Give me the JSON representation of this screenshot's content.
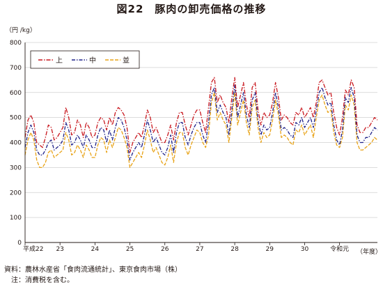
{
  "figure_title": "図22　豚肉の卸売価格の推移",
  "unit_label": "（円 /kg）",
  "source_note": "資料：農林水産省「食肉流通統計」、東京食肉市場（株）",
  "note": "　注：消費税を含む。",
  "chart_data": {
    "type": "line",
    "title": "",
    "ylabel": "（円 /kg）",
    "xlabel": "（年度）",
    "ylim": [
      0,
      800
    ],
    "yticks": [
      0,
      100,
      200,
      300,
      400,
      500,
      600,
      700,
      800
    ],
    "grid": true,
    "legend_position": "top-left",
    "x_tick_labels": [
      "平成22",
      "23",
      "24",
      "25",
      "26",
      "27",
      "28",
      "29",
      "30",
      "令和元"
    ],
    "months_per_year": 12,
    "colors": {
      "上": "#c8161d",
      "中": "#1d2088",
      "並": "#e8a317"
    },
    "series": [
      {
        "name": "上",
        "values": [
          420,
          490,
          510,
          480,
          400,
          390,
          380,
          420,
          470,
          460,
          410,
          420,
          440,
          460,
          540,
          500,
          430,
          440,
          490,
          470,
          420,
          480,
          460,
          420,
          430,
          480,
          500,
          490,
          450,
          500,
          470,
          520,
          540,
          530,
          510,
          460,
          360,
          400,
          420,
          440,
          420,
          470,
          530,
          500,
          440,
          460,
          430,
          400,
          400,
          430,
          470,
          410,
          480,
          520,
          520,
          470,
          430,
          470,
          510,
          530,
          530,
          480,
          440,
          540,
          640,
          660,
          560,
          590,
          560,
          540,
          480,
          580,
          660,
          540,
          590,
          640,
          550,
          500,
          620,
          640,
          530,
          470,
          520,
          500,
          510,
          560,
          640,
          580,
          490,
          510,
          500,
          480,
          470,
          520,
          510,
          540,
          500,
          520,
          540,
          500,
          560,
          640,
          650,
          620,
          590,
          600,
          520,
          460,
          430,
          500,
          610,
          590,
          650,
          620,
          470,
          440,
          440,
          460,
          460,
          480,
          500,
          490
        ]
      },
      {
        "name": "中",
        "values": [
          380,
          440,
          470,
          440,
          370,
          350,
          350,
          370,
          400,
          410,
          370,
          380,
          390,
          410,
          480,
          450,
          390,
          400,
          430,
          410,
          380,
          430,
          410,
          380,
          380,
          430,
          460,
          450,
          400,
          450,
          410,
          460,
          500,
          490,
          460,
          410,
          330,
          360,
          380,
          400,
          380,
          430,
          490,
          450,
          400,
          420,
          390,
          360,
          350,
          380,
          430,
          360,
          440,
          480,
          480,
          420,
          390,
          430,
          460,
          480,
          480,
          430,
          400,
          480,
          590,
          620,
          520,
          550,
          520,
          500,
          430,
          530,
          630,
          500,
          550,
          600,
          510,
          460,
          570,
          600,
          490,
          430,
          470,
          450,
          460,
          520,
          600,
          540,
          450,
          460,
          450,
          430,
          420,
          480,
          470,
          500,
          460,
          480,
          500,
          460,
          530,
          600,
          620,
          580,
          550,
          560,
          470,
          410,
          390,
          450,
          580,
          560,
          620,
          580,
          430,
          400,
          400,
          420,
          420,
          440,
          460,
          450
        ]
      },
      {
        "name": "並",
        "values": [
          350,
          410,
          440,
          410,
          330,
          300,
          300,
          320,
          360,
          370,
          340,
          350,
          360,
          370,
          440,
          410,
          350,
          360,
          390,
          370,
          340,
          390,
          370,
          340,
          340,
          390,
          420,
          410,
          360,
          410,
          380,
          420,
          460,
          450,
          420,
          380,
          300,
          320,
          340,
          360,
          340,
          390,
          450,
          410,
          360,
          380,
          350,
          320,
          310,
          340,
          390,
          320,
          400,
          440,
          440,
          380,
          350,
          390,
          420,
          450,
          440,
          400,
          380,
          430,
          560,
          600,
          490,
          520,
          490,
          470,
          400,
          500,
          600,
          470,
          520,
          570,
          480,
          430,
          540,
          570,
          460,
          400,
          440,
          420,
          430,
          490,
          570,
          510,
          420,
          430,
          420,
          400,
          390,
          450,
          440,
          470,
          430,
          450,
          470,
          420,
          500,
          570,
          590,
          550,
          520,
          530,
          440,
          390,
          380,
          420,
          550,
          530,
          590,
          550,
          400,
          370,
          370,
          380,
          390,
          400,
          420,
          410
        ]
      }
    ]
  }
}
